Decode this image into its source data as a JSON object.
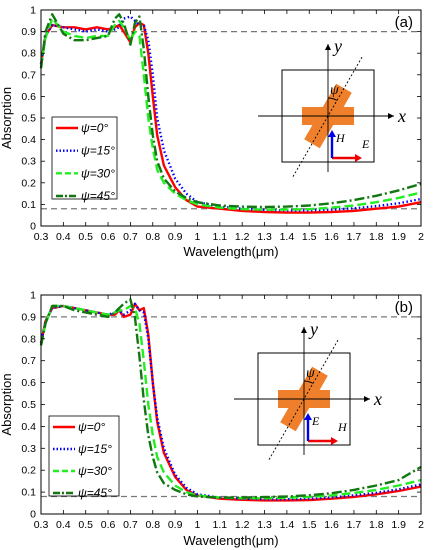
{
  "chart_data": [
    {
      "type": "line",
      "panel_label": "(a)",
      "xlabel": "Wavelength(μm)",
      "ylabel": "Absorption",
      "xlim": [
        0.3,
        2.0
      ],
      "ylim": [
        0,
        1.0
      ],
      "xticks": [
        "0.3",
        "0.4",
        "0.5",
        "0.6",
        "0.7",
        "0.8",
        "0.9",
        "1",
        "1.1",
        "1.2",
        "1.3",
        "1.4",
        "1.5",
        "1.6",
        "1.7",
        "1.8",
        "1.9",
        "2"
      ],
      "yticks": [
        "0",
        "0.1",
        "0.2",
        "0.3",
        "0.4",
        "0.5",
        "0.6",
        "0.7",
        "0.8",
        "0.9",
        "1"
      ],
      "ref_lines": [
        0.9,
        0.08
      ],
      "legend_position": "left-center",
      "series": [
        {
          "name": "ψ=0°",
          "color": "#ff0000",
          "style": "solid",
          "x": [
            0.3,
            0.32,
            0.35,
            0.4,
            0.45,
            0.5,
            0.55,
            0.6,
            0.63,
            0.65,
            0.67,
            0.7,
            0.72,
            0.74,
            0.76,
            0.78,
            0.8,
            0.82,
            0.85,
            0.9,
            0.95,
            1.0,
            1.1,
            1.2,
            1.3,
            1.4,
            1.5,
            1.6,
            1.7,
            1.8,
            1.9,
            2.0
          ],
          "y": [
            0.75,
            0.88,
            0.93,
            0.92,
            0.92,
            0.91,
            0.92,
            0.91,
            0.92,
            0.93,
            0.9,
            0.85,
            0.92,
            0.94,
            0.93,
            0.8,
            0.6,
            0.42,
            0.28,
            0.18,
            0.12,
            0.09,
            0.08,
            0.07,
            0.065,
            0.062,
            0.062,
            0.065,
            0.07,
            0.08,
            0.09,
            0.11
          ]
        },
        {
          "name": "ψ=15°",
          "color": "#0000ff",
          "style": "dotted",
          "x": [
            0.3,
            0.32,
            0.35,
            0.4,
            0.45,
            0.5,
            0.55,
            0.6,
            0.63,
            0.65,
            0.67,
            0.7,
            0.72,
            0.74,
            0.76,
            0.78,
            0.8,
            0.82,
            0.85,
            0.9,
            0.95,
            1.0,
            1.1,
            1.2,
            1.3,
            1.4,
            1.5,
            1.6,
            1.7,
            1.8,
            1.9,
            2.0
          ],
          "y": [
            0.75,
            0.88,
            0.93,
            0.92,
            0.91,
            0.9,
            0.91,
            0.9,
            0.91,
            0.92,
            0.96,
            0.97,
            0.95,
            0.93,
            0.93,
            0.86,
            0.7,
            0.5,
            0.35,
            0.22,
            0.15,
            0.11,
            0.09,
            0.08,
            0.075,
            0.072,
            0.072,
            0.076,
            0.082,
            0.092,
            0.105,
            0.125
          ]
        },
        {
          "name": "ψ=30°",
          "color": "#22ee22",
          "style": "dashed",
          "x": [
            0.3,
            0.32,
            0.35,
            0.4,
            0.45,
            0.5,
            0.55,
            0.6,
            0.63,
            0.65,
            0.67,
            0.7,
            0.72,
            0.74,
            0.76,
            0.78,
            0.8,
            0.82,
            0.85,
            0.9,
            0.95,
            1.0,
            1.1,
            1.2,
            1.3,
            1.4,
            1.5,
            1.6,
            1.7,
            1.8,
            1.9,
            2.0
          ],
          "y": [
            0.74,
            0.87,
            0.96,
            0.9,
            0.88,
            0.87,
            0.88,
            0.88,
            0.93,
            0.95,
            0.92,
            0.86,
            0.9,
            0.88,
            0.7,
            0.5,
            0.36,
            0.26,
            0.2,
            0.15,
            0.12,
            0.1,
            0.085,
            0.078,
            0.076,
            0.076,
            0.078,
            0.085,
            0.095,
            0.11,
            0.13,
            0.155
          ]
        },
        {
          "name": "ψ=45°",
          "color": "#117711",
          "style": "dashdot",
          "x": [
            0.3,
            0.32,
            0.35,
            0.4,
            0.45,
            0.5,
            0.55,
            0.6,
            0.63,
            0.65,
            0.67,
            0.7,
            0.72,
            0.74,
            0.76,
            0.78,
            0.8,
            0.82,
            0.85,
            0.9,
            0.95,
            1.0,
            1.1,
            1.2,
            1.3,
            1.4,
            1.5,
            1.6,
            1.7,
            1.8,
            1.9,
            2.0
          ],
          "y": [
            0.73,
            0.9,
            0.98,
            0.89,
            0.86,
            0.86,
            0.87,
            0.88,
            0.96,
            0.98,
            0.94,
            0.84,
            0.94,
            0.97,
            0.82,
            0.6,
            0.42,
            0.3,
            0.22,
            0.16,
            0.13,
            0.11,
            0.095,
            0.09,
            0.088,
            0.09,
            0.095,
            0.105,
            0.12,
            0.14,
            0.165,
            0.195
          ]
        }
      ],
      "inset": {
        "x_label": "x",
        "y_label": "y",
        "angle_label": "ψ",
        "h_label": "H⃗",
        "e_label": "E⃗",
        "angle_deg": 30,
        "field_order": "HE"
      }
    },
    {
      "type": "line",
      "panel_label": "(b)",
      "xlabel": "Wavelength(μm)",
      "ylabel": "Absorption",
      "xlim": [
        0.3,
        2.0
      ],
      "ylim": [
        0,
        1.0
      ],
      "xticks": [
        "0.3",
        "0.4",
        "0.5",
        "0.6",
        "0.7",
        "0.8",
        "0.9",
        "1",
        "1.1",
        "1.2",
        "1.3",
        "1.4",
        "1.5",
        "1.6",
        "1.7",
        "1.8",
        "1.9",
        "2"
      ],
      "yticks": [
        "0",
        "0.1",
        "0.2",
        "0.3",
        "0.4",
        "0.5",
        "0.6",
        "0.7",
        "0.8",
        "0.9",
        "1"
      ],
      "ref_lines": [
        0.9,
        0.08
      ],
      "legend_position": "bottom-left",
      "series": [
        {
          "name": "ψ=0°",
          "color": "#ff0000",
          "style": "solid",
          "x": [
            0.3,
            0.32,
            0.35,
            0.4,
            0.45,
            0.5,
            0.55,
            0.6,
            0.63,
            0.65,
            0.67,
            0.7,
            0.72,
            0.74,
            0.76,
            0.78,
            0.8,
            0.82,
            0.85,
            0.9,
            0.95,
            1.0,
            1.1,
            1.2,
            1.3,
            1.4,
            1.5,
            1.6,
            1.7,
            1.8,
            1.9,
            2.0
          ],
          "y": [
            0.78,
            0.88,
            0.94,
            0.95,
            0.94,
            0.93,
            0.92,
            0.91,
            0.91,
            0.93,
            0.9,
            0.91,
            0.96,
            0.93,
            0.94,
            0.82,
            0.6,
            0.42,
            0.28,
            0.17,
            0.11,
            0.085,
            0.07,
            0.065,
            0.062,
            0.062,
            0.064,
            0.07,
            0.078,
            0.09,
            0.105,
            0.125
          ]
        },
        {
          "name": "ψ=15°",
          "color": "#0000ff",
          "style": "dotted",
          "x": [
            0.3,
            0.32,
            0.35,
            0.4,
            0.45,
            0.5,
            0.55,
            0.6,
            0.63,
            0.65,
            0.67,
            0.7,
            0.72,
            0.74,
            0.76,
            0.78,
            0.8,
            0.82,
            0.85,
            0.9,
            0.95,
            1.0,
            1.1,
            1.2,
            1.3,
            1.4,
            1.5,
            1.6,
            1.7,
            1.8,
            1.9,
            2.0
          ],
          "y": [
            0.78,
            0.88,
            0.94,
            0.95,
            0.94,
            0.93,
            0.92,
            0.91,
            0.92,
            0.93,
            0.91,
            0.93,
            0.96,
            0.93,
            0.92,
            0.8,
            0.6,
            0.44,
            0.3,
            0.18,
            0.12,
            0.09,
            0.075,
            0.07,
            0.067,
            0.067,
            0.07,
            0.076,
            0.085,
            0.097,
            0.113,
            0.135
          ]
        },
        {
          "name": "ψ=30°",
          "color": "#22ee22",
          "style": "dashed",
          "x": [
            0.3,
            0.32,
            0.35,
            0.4,
            0.45,
            0.5,
            0.55,
            0.6,
            0.63,
            0.65,
            0.67,
            0.7,
            0.72,
            0.74,
            0.76,
            0.78,
            0.8,
            0.82,
            0.85,
            0.9,
            0.95,
            1.0,
            1.1,
            1.2,
            1.3,
            1.4,
            1.5,
            1.6,
            1.7,
            1.8,
            1.9,
            2.0
          ],
          "y": [
            0.77,
            0.87,
            0.95,
            0.95,
            0.94,
            0.93,
            0.92,
            0.91,
            0.92,
            0.93,
            0.93,
            0.95,
            0.94,
            0.87,
            0.7,
            0.5,
            0.36,
            0.26,
            0.19,
            0.13,
            0.1,
            0.085,
            0.075,
            0.072,
            0.072,
            0.074,
            0.078,
            0.085,
            0.096,
            0.11,
            0.13,
            0.155
          ]
        },
        {
          "name": "ψ=45°",
          "color": "#117711",
          "style": "dashdot",
          "x": [
            0.3,
            0.32,
            0.35,
            0.4,
            0.45,
            0.5,
            0.55,
            0.6,
            0.63,
            0.65,
            0.67,
            0.7,
            0.72,
            0.74,
            0.76,
            0.78,
            0.8,
            0.82,
            0.85,
            0.9,
            0.95,
            1.0,
            1.1,
            1.2,
            1.3,
            1.4,
            1.5,
            1.6,
            1.7,
            1.8,
            1.9,
            2.0
          ],
          "y": [
            0.77,
            0.87,
            0.95,
            0.95,
            0.93,
            0.92,
            0.91,
            0.9,
            0.92,
            0.94,
            0.96,
            0.98,
            0.9,
            0.72,
            0.52,
            0.36,
            0.26,
            0.19,
            0.14,
            0.11,
            0.09,
            0.08,
            0.075,
            0.075,
            0.077,
            0.08,
            0.086,
            0.095,
            0.11,
            0.13,
            0.155,
            0.215
          ]
        }
      ],
      "inset": {
        "x_label": "x",
        "y_label": "y",
        "angle_label": "ψ",
        "h_label": "H⃗",
        "e_label": "E⃗",
        "angle_deg": 30,
        "field_order": "EH"
      }
    }
  ]
}
